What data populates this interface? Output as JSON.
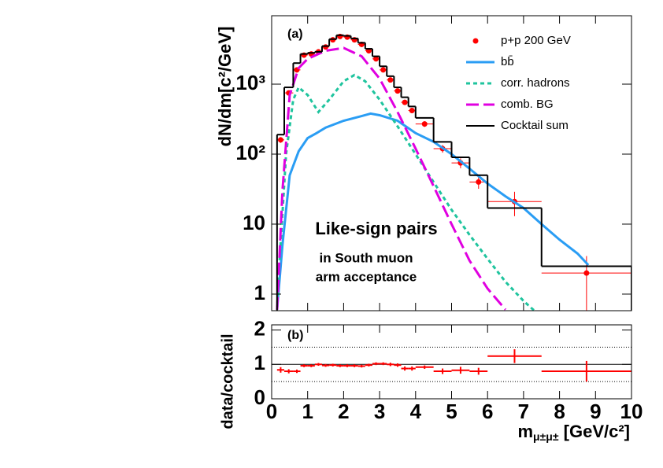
{
  "chart_data": [
    {
      "type": "line",
      "y_label": "dN/dm[c²/GeV]",
      "log_y": true,
      "legend": "top-right",
      "xlim": [
        0,
        10
      ],
      "xticks": [
        0,
        1,
        2,
        3,
        4,
        5,
        6,
        7,
        8,
        9,
        10
      ],
      "ylim": [
        0.58,
        9500
      ],
      "yticks": [
        1,
        10,
        {
          "value": 100,
          "label": "10²"
        },
        {
          "value": 1000,
          "label": "10³"
        }
      ],
      "annotations": [
        "(a)",
        "Like-sign pairs",
        "in South muon",
        "arm acceptance"
      ],
      "series": [
        {
          "name": "p+p 200 GeV",
          "style": "points",
          "color": "#ff0000",
          "bins": [
            0.15,
            0.35,
            0.6,
            0.8,
            1.0,
            1.2,
            1.4,
            1.6,
            1.8,
            2.0,
            2.2,
            2.4,
            2.6,
            2.8,
            3.0,
            3.2,
            3.4,
            3.6,
            3.8,
            4.0,
            4.5,
            5.0,
            5.5,
            6.0,
            7.5,
            10
          ],
          "values": [
            160,
            750,
            1600,
            2600,
            2700,
            2900,
            3400,
            4300,
            4800,
            4700,
            4300,
            3700,
            3000,
            2300,
            1600,
            1150,
            800,
            550,
            420,
            270,
            120,
            75,
            40,
            21,
            2.0
          ],
          "yerr": [
            15,
            40,
            70,
            100,
            100,
            110,
            120,
            140,
            150,
            150,
            140,
            120,
            100,
            90,
            70,
            55,
            45,
            40,
            35,
            25,
            15,
            12,
            8,
            8,
            1.5
          ]
        },
        {
          "name": "bb̄",
          "style": "line",
          "dash": "solid",
          "color": "#2a9df4",
          "x": [
            0.15,
            0.3,
            0.5,
            0.75,
            1.0,
            1.25,
            1.5,
            2.0,
            2.5,
            2.75,
            3.0,
            3.5,
            4.0,
            4.5,
            5.0,
            5.5,
            6.0,
            6.5,
            7.0,
            7.5,
            8.0,
            8.5,
            8.8
          ],
          "values": [
            0.6,
            5,
            50,
            110,
            170,
            200,
            240,
            300,
            350,
            380,
            360,
            300,
            200,
            150,
            100,
            62,
            38,
            25,
            17,
            10,
            6,
            3.8,
            2.6
          ]
        },
        {
          "name": "corr. hadrons",
          "style": "line",
          "dash": "short",
          "color": "#1fc49e",
          "x": [
            0.15,
            0.2,
            0.4,
            0.6,
            0.75,
            1.0,
            1.3,
            1.6,
            2.0,
            2.3,
            2.6,
            3.0,
            3.5,
            4.0,
            4.5,
            5.0,
            5.5,
            6.0,
            6.5,
            7.0,
            7.3
          ],
          "values": [
            0.6,
            2,
            100,
            600,
            900,
            700,
            400,
            600,
            1100,
            1350,
            1100,
            600,
            250,
            100,
            40,
            16,
            7,
            3.2,
            1.5,
            0.8,
            0.58
          ]
        },
        {
          "name": "comb. BG",
          "style": "line",
          "dash": "long",
          "color": "#e000e0",
          "x": [
            0.15,
            0.3,
            0.5,
            0.75,
            1.0,
            1.5,
            2.0,
            2.5,
            3.0,
            3.5,
            4.0,
            4.5,
            5.0,
            5.5,
            6.0,
            6.5
          ],
          "values": [
            0.6,
            30,
            700,
            1700,
            2300,
            3000,
            3300,
            2500,
            1200,
            400,
            120,
            35,
            10,
            3,
            1.2,
            0.6
          ]
        },
        {
          "name": "Cocktail sum",
          "style": "step",
          "color": "#000000",
          "bins": [
            0.15,
            0.35,
            0.6,
            0.8,
            1.0,
            1.2,
            1.4,
            1.6,
            1.8,
            2.0,
            2.2,
            2.4,
            2.6,
            2.8,
            3.0,
            3.2,
            3.4,
            3.6,
            3.8,
            4.0,
            4.5,
            5.0,
            5.5,
            6.0,
            7.5,
            10
          ],
          "values": [
            190,
            900,
            2000,
            2700,
            2800,
            2900,
            3500,
            4400,
            5000,
            4900,
            4500,
            3900,
            3200,
            2500,
            1800,
            1300,
            900,
            650,
            480,
            330,
            150,
            90,
            50,
            17,
            2.5
          ]
        }
      ]
    },
    {
      "type": "scatter",
      "y_label": "data/cocktail",
      "x_label": {
        "main": "m",
        "sub": "μ±μ±",
        "unit": " [GeV/c²]"
      },
      "xlim": [
        0,
        10
      ],
      "xticks": [
        0,
        1,
        2,
        3,
        4,
        5,
        6,
        7,
        8,
        9,
        10
      ],
      "ylim": [
        0,
        2.15
      ],
      "yticks": [
        0,
        1,
        2
      ],
      "annotations": [
        "(b)"
      ],
      "reference_lines": [
        {
          "value": 0.5,
          "style": "dotted"
        },
        {
          "value": 1,
          "style": "solid"
        },
        {
          "value": 1.5,
          "style": "dotted"
        }
      ],
      "series": [
        {
          "style": "points",
          "color": "#ff0000",
          "bins": [
            0.15,
            0.35,
            0.6,
            0.8,
            1.0,
            1.2,
            1.4,
            1.6,
            1.8,
            2.0,
            2.2,
            2.4,
            2.6,
            2.8,
            3.0,
            3.2,
            3.4,
            3.6,
            3.8,
            4.0,
            4.5,
            5.0,
            5.5,
            6.0,
            7.5,
            10
          ],
          "values": [
            0.84,
            0.8,
            0.8,
            0.96,
            0.96,
            1.0,
            0.97,
            0.98,
            0.96,
            0.96,
            0.96,
            0.95,
            0.98,
            1.02,
            1.02,
            1.0,
            0.98,
            0.88,
            0.88,
            0.92,
            0.8,
            0.83,
            0.8,
            1.24,
            0.8
          ],
          "yerr": [
            0.08,
            0.06,
            0.05,
            0.04,
            0.04,
            0.04,
            0.04,
            0.04,
            0.04,
            0.04,
            0.04,
            0.04,
            0.04,
            0.04,
            0.04,
            0.05,
            0.05,
            0.06,
            0.06,
            0.05,
            0.08,
            0.1,
            0.1,
            0.2,
            0.3
          ]
        }
      ]
    }
  ]
}
